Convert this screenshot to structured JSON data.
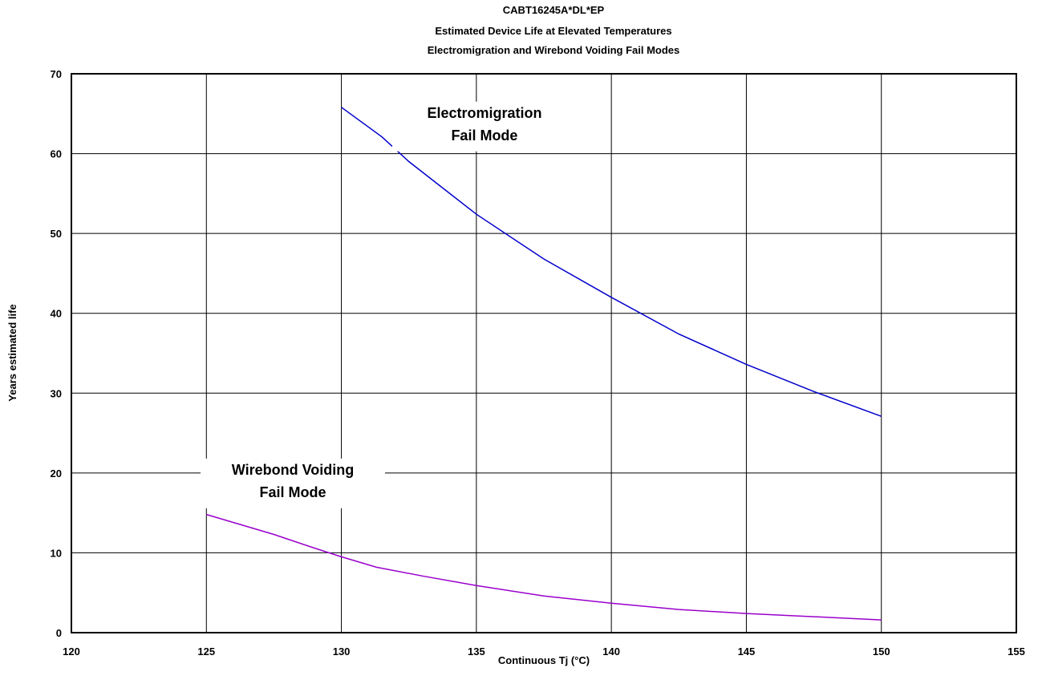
{
  "chart_data": {
    "type": "line",
    "title": [
      "CABT16245A*DL*EP",
      "Estimated Device Life at Elevated Temperatures",
      "Electromigration and Wirebond Voiding Fail Modes"
    ],
    "xlabel": "Continuous Tj (°C)",
    "ylabel": "Years estimated life",
    "xlim": [
      120,
      155
    ],
    "ylim": [
      0,
      70
    ],
    "xticks": [
      120,
      125,
      130,
      135,
      140,
      145,
      150,
      155
    ],
    "yticks": [
      0,
      10,
      20,
      30,
      40,
      50,
      60,
      70
    ],
    "grid": true,
    "series": [
      {
        "color": "#0000cc",
        "x": [
          130,
          131.5,
          132.5,
          135,
          137.5,
          140,
          142.5,
          145,
          147.5,
          150
        ],
        "y": [
          65.8,
          62.1,
          59.0,
          52.4,
          46.8,
          42.0,
          37.4,
          33.6,
          30.2,
          27.1
        ]
      },
      {
        "color": "#9900cc",
        "x": [
          125,
          127.5,
          129,
          130,
          131.3,
          133,
          135,
          137.5,
          140,
          142.5,
          145,
          147.5,
          150
        ],
        "y": [
          14.8,
          12.3,
          10.6,
          9.5,
          8.2,
          7.1,
          5.9,
          4.6,
          3.7,
          2.9,
          2.4,
          2.0,
          1.6
        ]
      }
    ],
    "annotations": [
      {
        "lines": [
          "Electromigration",
          "Fail Mode"
        ],
        "x": 135.3,
        "y": 64.5
      },
      {
        "lines": [
          "Wirebond Voiding",
          "Fail Mode"
        ],
        "x": 128.2,
        "y": 19.8
      }
    ]
  }
}
